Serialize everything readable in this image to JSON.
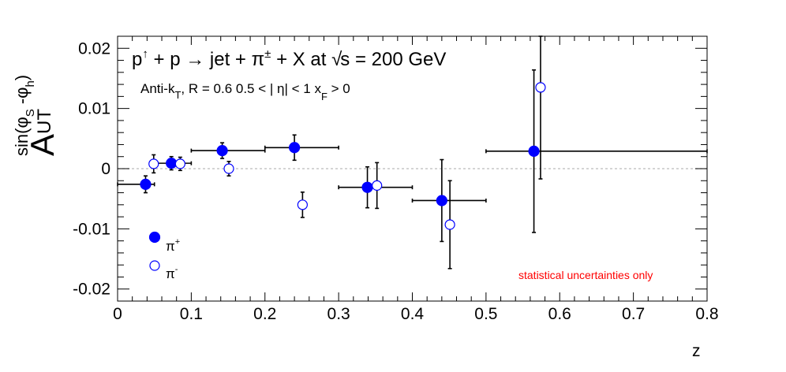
{
  "chart_data": {
    "type": "scatter",
    "title": {
      "p": "p",
      "arrow": "↑",
      "plus1": " + p ",
      "to": "→",
      "jet": " jet + π",
      "pm": "±",
      "x": " + X at ",
      "sqrt": "√",
      "s": "s = 200 GeV"
    },
    "subtitle": {
      "antik": "Anti-k",
      "t": "T",
      "r": ", R = 0.6   0.5 < | η| < 1   x",
      "f": "F",
      "gt": " > 0"
    },
    "xlabel": "z",
    "ylabel": {
      "main": "A",
      "sub": "UT",
      "sup": "sin(φ",
      "s": "S",
      "mid": " -φ",
      "h": "h",
      "end": ")"
    },
    "xlim": [
      0,
      0.8
    ],
    "ylim": [
      -0.022,
      0.022
    ],
    "xticks": [
      "0",
      "0.1",
      "0.2",
      "0.3",
      "0.4",
      "0.5",
      "0.6",
      "0.7",
      "0.8"
    ],
    "yticks": [
      {
        "value": 0.02,
        "label": "0.02"
      },
      {
        "value": 0.01,
        "label": "0.01"
      },
      {
        "value": 0,
        "label": "0"
      },
      {
        "value": -0.01,
        "label": "-0.01"
      },
      {
        "value": -0.02,
        "label": "-0.02"
      }
    ],
    "series": [
      {
        "name": "π+",
        "label_base": "π",
        "label_sup": "+",
        "marker": "filled",
        "color": "#0000ff",
        "points": [
          {
            "x": 0.038,
            "y": -0.0026,
            "xerr": [
              0.038,
              0.012
            ],
            "yerr": 0.0014
          },
          {
            "x": 0.073,
            "y": 0.0009,
            "xerr": [
              0.023,
              0.027
            ],
            "yerr": 0.0011
          },
          {
            "x": 0.142,
            "y": 0.003,
            "xerr": [
              0.042,
              0.058
            ],
            "yerr": 0.0013
          },
          {
            "x": 0.24,
            "y": 0.0035,
            "xerr": [
              0.04,
              0.06
            ],
            "yerr": 0.0021
          },
          {
            "x": 0.339,
            "y": -0.0031,
            "xerr": [
              0.039,
              0.061
            ],
            "yerr": 0.0034
          },
          {
            "x": 0.44,
            "y": -0.0053,
            "xerr": [
              0.04,
              0.06
            ],
            "yerr": 0.0068
          },
          {
            "x": 0.565,
            "y": 0.0029,
            "xerr": [
              0.065,
              0.235
            ],
            "yerr": 0.0135
          }
        ]
      },
      {
        "name": "π-",
        "label_base": "π",
        "label_sup": "-",
        "marker": "open",
        "color": "#0000ff",
        "points": [
          {
            "x": 0.049,
            "y": 0.0008,
            "yerr": 0.0015
          },
          {
            "x": 0.085,
            "y": 0.0008,
            "yerr": 0.0011
          },
          {
            "x": 0.151,
            "y": 0.0,
            "yerr": 0.0012
          },
          {
            "x": 0.251,
            "y": -0.006,
            "yerr": 0.0021
          },
          {
            "x": 0.352,
            "y": -0.0028,
            "yerr": 0.0038
          },
          {
            "x": 0.451,
            "y": -0.0093,
            "yerr": 0.0073
          },
          {
            "x": 0.574,
            "y": 0.0135,
            "yerr": 0.0152
          }
        ]
      }
    ],
    "reference_line": {
      "y": 0,
      "style": "dashed",
      "color": "#bbbbbb"
    },
    "annotation": {
      "text": "statistical uncertainties only",
      "color": "#ff0000"
    }
  }
}
